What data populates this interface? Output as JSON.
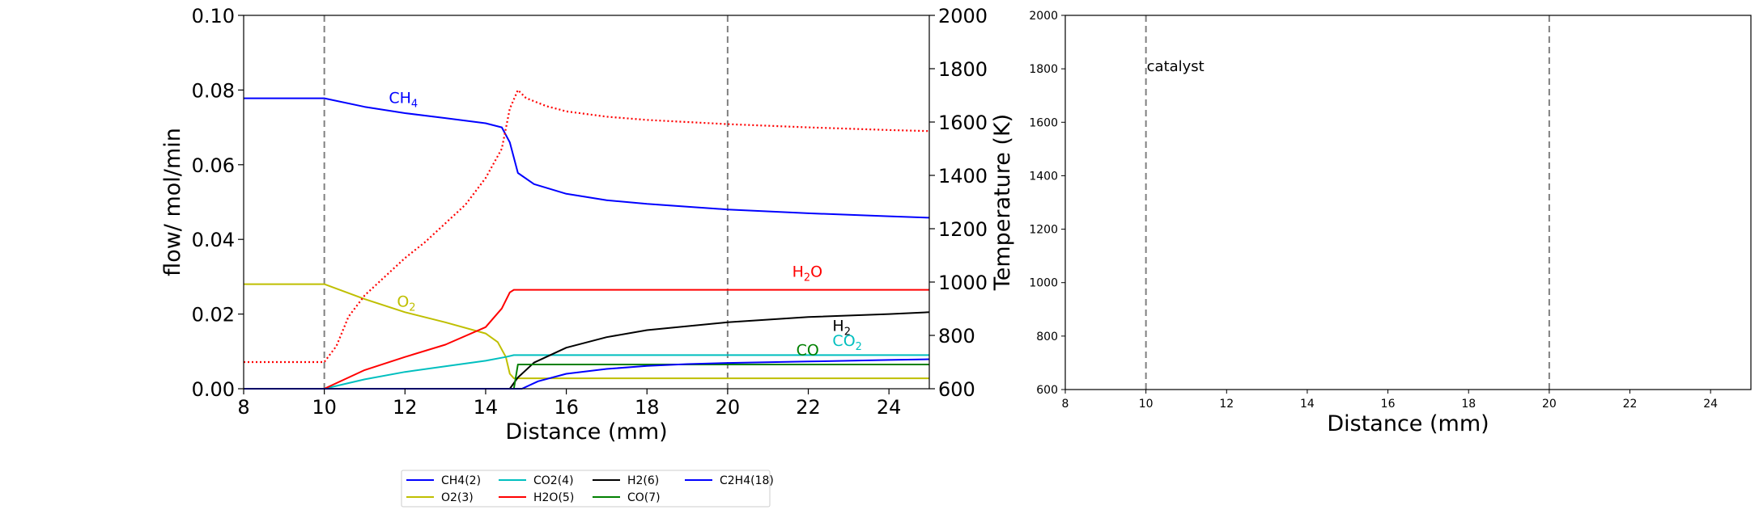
{
  "chart_data": [
    {
      "type": "line",
      "xlabel": "Distance (mm)",
      "ylabel": "flow/ mol/min",
      "y2label": "Temperature (K)",
      "xlim": [
        8,
        25
      ],
      "ylim": [
        0,
        0.1
      ],
      "y2lim": [
        600,
        2000
      ],
      "xticks": [
        "8",
        "10",
        "12",
        "14",
        "16",
        "18",
        "20",
        "22",
        "24"
      ],
      "yticks": [
        "0.00",
        "0.02",
        "0.04",
        "0.06",
        "0.08",
        "0.10"
      ],
      "y2ticks": [
        "600",
        "800",
        "1000",
        "1200",
        "1400",
        "1600",
        "1800",
        "2000"
      ],
      "vlines": [
        10,
        20
      ],
      "grid": false,
      "legend_position": "below",
      "legend": [
        {
          "label": "CH4(2)",
          "color": "#0000ff"
        },
        {
          "label": "O2(3)",
          "color": "#bfbf00"
        },
        {
          "label": "CO2(4)",
          "color": "#00bfbf"
        },
        {
          "label": "H2O(5)",
          "color": "#ff0000"
        },
        {
          "label": "H2(6)",
          "color": "#000000"
        },
        {
          "label": "CO(7)",
          "color": "#008000"
        },
        {
          "label": "C2H4(18)",
          "color": "#0000ff"
        }
      ],
      "annotations": [
        {
          "text": "CH",
          "sub": "4",
          "x": 11.6,
          "y": 0.0765,
          "color": "#0000ff"
        },
        {
          "text": "O",
          "sub": "2",
          "x": 11.8,
          "y": 0.022,
          "color": "#bfbf00"
        },
        {
          "text": "H",
          "sub": "2",
          "x": 22.6,
          "y": 0.0155,
          "color": "#000000"
        },
        {
          "text": "H",
          "sub": "2",
          "suffix": "O",
          "x": 21.6,
          "y": 0.03,
          "color": "#ff0000"
        },
        {
          "text": "CO",
          "sub": "2",
          "x": 22.6,
          "y": 0.0115,
          "color": "#00bfbf"
        },
        {
          "text": "CO",
          "sub": "",
          "x": 21.7,
          "y": 0.009,
          "color": "#008000"
        }
      ],
      "series": [
        {
          "name": "CH4(2)",
          "color": "#0000ff",
          "x": [
            8,
            10,
            11,
            12,
            13,
            14,
            14.4,
            14.6,
            14.8,
            15.2,
            16,
            17,
            18,
            20,
            22,
            24,
            25
          ],
          "y": [
            0.0778,
            0.0778,
            0.0755,
            0.0738,
            0.0725,
            0.0711,
            0.07,
            0.066,
            0.0578,
            0.0548,
            0.0522,
            0.0505,
            0.0495,
            0.048,
            0.047,
            0.0462,
            0.0458
          ]
        },
        {
          "name": "O2(3)",
          "color": "#bfbf00",
          "x": [
            8,
            10,
            11,
            12,
            13,
            14,
            14.3,
            14.5,
            14.6,
            14.7,
            25
          ],
          "y": [
            0.028,
            0.028,
            0.024,
            0.0205,
            0.0178,
            0.0148,
            0.0125,
            0.0085,
            0.004,
            0.0028,
            0.0028
          ]
        },
        {
          "name": "CO2(4)",
          "color": "#00bfbf",
          "x": [
            8,
            10,
            11,
            12,
            13,
            14,
            14.5,
            14.7,
            25
          ],
          "y": [
            0.0,
            0.0,
            0.0025,
            0.0045,
            0.006,
            0.0075,
            0.0085,
            0.009,
            0.009
          ]
        },
        {
          "name": "H2O(5)",
          "color": "#ff0000",
          "x": [
            8,
            10,
            11,
            12,
            13,
            14,
            14.4,
            14.6,
            14.7,
            14.8,
            25
          ],
          "y": [
            0.0,
            0.0,
            0.005,
            0.0085,
            0.0118,
            0.0165,
            0.0215,
            0.0258,
            0.0265,
            0.0265,
            0.0265
          ]
        },
        {
          "name": "H2(6)",
          "color": "#000000",
          "x": [
            8,
            14.6,
            14.8,
            15.2,
            16,
            17,
            18,
            20,
            22,
            24,
            25
          ],
          "y": [
            0.0,
            0.0,
            0.003,
            0.007,
            0.011,
            0.0138,
            0.0157,
            0.0178,
            0.0192,
            0.02,
            0.0205
          ]
        },
        {
          "name": "CO(7)",
          "color": "#008000",
          "x": [
            8,
            14.7,
            14.8,
            25
          ],
          "y": [
            0.0,
            0.0,
            0.0065,
            0.0065
          ]
        },
        {
          "name": "C2H4(18)",
          "color": "#0000ff",
          "x": [
            8,
            14.9,
            15.3,
            16,
            17,
            18,
            19,
            20,
            22,
            24,
            25
          ],
          "y": [
            0.0,
            0.0,
            0.002,
            0.004,
            0.0053,
            0.0061,
            0.0066,
            0.0069,
            0.0073,
            0.0077,
            0.0079
          ]
        },
        {
          "name": "Temperature",
          "color": "#ff0000",
          "dotted": true,
          "axis": "y2",
          "x": [
            8,
            10,
            10.3,
            10.6,
            11,
            11.5,
            12,
            12.5,
            13,
            13.5,
            14,
            14.4,
            14.6,
            14.8,
            15,
            15.5,
            16,
            17,
            18,
            20,
            22,
            24,
            25
          ],
          "y": [
            700,
            700,
            760,
            870,
            950,
            1020,
            1090,
            1150,
            1220,
            1290,
            1390,
            1500,
            1650,
            1720,
            1690,
            1660,
            1640,
            1620,
            1608,
            1592,
            1580,
            1570,
            1566
          ]
        }
      ]
    },
    {
      "type": "line",
      "xlabel": "Distance (mm)",
      "xlim": [
        8,
        25
      ],
      "ylim": [
        600,
        2000
      ],
      "xticks": [
        "8",
        "10",
        "12",
        "14",
        "16",
        "18",
        "20",
        "22",
        "24"
      ],
      "yticks": [
        "600",
        "800",
        "1000",
        "1200",
        "1400",
        "1600",
        "1800",
        "2000"
      ],
      "vlines": [
        10,
        20
      ],
      "annotations": [
        {
          "text": "catalyst",
          "x": 10,
          "y": 1810,
          "color": "#000000"
        }
      ],
      "series": []
    }
  ]
}
